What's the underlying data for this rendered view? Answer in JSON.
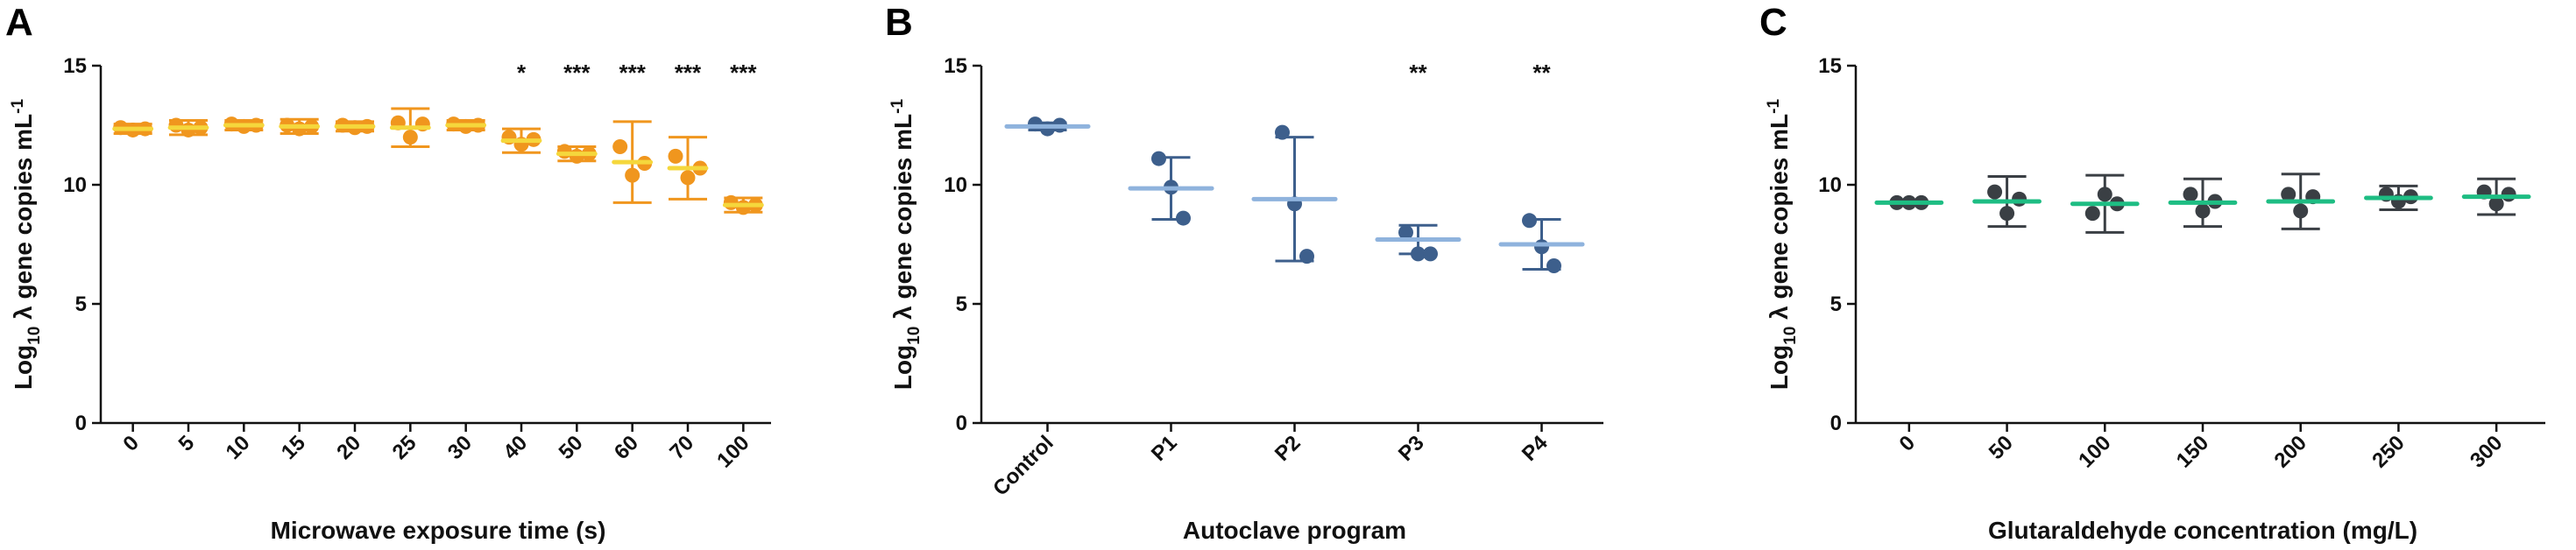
{
  "chart_data": [
    {
      "panel": "A",
      "type": "scatter",
      "xlabel": "Microwave exposure time (s)",
      "ylabel_parts": [
        "Log",
        "10",
        " λ gene copies mL",
        "-1"
      ],
      "ylim": [
        0,
        15
      ],
      "yticks": [
        "0",
        "5",
        "10",
        "15"
      ],
      "categories": [
        "0",
        "5",
        "10",
        "15",
        "20",
        "25",
        "30",
        "40",
        "50",
        "60",
        "70",
        "100"
      ],
      "means": [
        12.35,
        12.4,
        12.5,
        12.45,
        12.45,
        12.4,
        12.5,
        11.85,
        11.3,
        10.95,
        10.7,
        9.15
      ],
      "sd": [
        0.2,
        0.3,
        0.2,
        0.3,
        0.2,
        0.8,
        0.2,
        0.5,
        0.3,
        1.7,
        1.3,
        0.3
      ],
      "points": [
        [
          12.4,
          12.3,
          12.35
        ],
        [
          12.5,
          12.3,
          12.4
        ],
        [
          12.55,
          12.45,
          12.5
        ],
        [
          12.5,
          12.35,
          12.45
        ],
        [
          12.5,
          12.4,
          12.45
        ],
        [
          12.6,
          12.0,
          12.55
        ],
        [
          12.55,
          12.45,
          12.5
        ],
        [
          12.0,
          11.7,
          11.9
        ],
        [
          11.4,
          11.2,
          11.3
        ],
        [
          11.6,
          10.4,
          10.9
        ],
        [
          11.2,
          10.3,
          10.7
        ],
        [
          9.25,
          9.05,
          9.15
        ]
      ],
      "significance": [
        "",
        "",
        "",
        "",
        "",
        "",
        "",
        "*",
        "***",
        "***",
        "***",
        "***"
      ],
      "point_color": "#f0961e",
      "mean_color": "#f5d73c"
    },
    {
      "panel": "B",
      "type": "scatter",
      "xlabel": "Autoclave program",
      "ylabel_parts": [
        "Log",
        "10",
        " λ gene copies mL",
        "-1"
      ],
      "ylim": [
        0,
        15
      ],
      "yticks": [
        "0",
        "5",
        "10",
        "15"
      ],
      "categories": [
        "Control",
        "P1",
        "P2",
        "P3",
        "P4"
      ],
      "means": [
        12.45,
        9.85,
        9.4,
        7.7,
        7.5
      ],
      "sd": [
        0.15,
        1.3,
        2.6,
        0.6,
        1.05
      ],
      "points": [
        [
          12.55,
          12.35,
          12.5
        ],
        [
          11.1,
          9.9,
          8.6
        ],
        [
          12.2,
          9.2,
          7.0
        ],
        [
          8.0,
          7.1,
          7.1
        ],
        [
          8.5,
          7.4,
          6.6
        ]
      ],
      "significance": [
        "",
        "",
        "",
        "**",
        "**"
      ],
      "point_color": "#3d5f8c",
      "mean_color": "#8fb3dd"
    },
    {
      "panel": "C",
      "type": "scatter",
      "xlabel": "Glutaraldehyde concentration (mg/L)",
      "ylabel_parts": [
        "Log",
        "10",
        " λ gene copies mL",
        "-1"
      ],
      "ylim": [
        0,
        15
      ],
      "yticks": [
        "0",
        "5",
        "10",
        "15"
      ],
      "categories": [
        "0",
        "50",
        "100",
        "150",
        "200",
        "250",
        "300"
      ],
      "means": [
        9.25,
        9.3,
        9.2,
        9.25,
        9.3,
        9.45,
        9.5
      ],
      "sd": [
        0.05,
        1.05,
        1.2,
        1.0,
        1.15,
        0.5,
        0.75
      ],
      "points": [
        [
          9.25,
          9.25,
          9.25
        ],
        [
          9.7,
          8.8,
          9.4
        ],
        [
          8.8,
          9.6,
          9.2
        ],
        [
          9.6,
          8.9,
          9.3
        ],
        [
          9.6,
          8.9,
          9.5
        ],
        [
          9.6,
          9.3,
          9.5
        ],
        [
          9.7,
          9.2,
          9.6
        ]
      ],
      "significance": [
        "",
        "",
        "",
        "",
        "",
        "",
        ""
      ],
      "point_color": "#3a3f44",
      "mean_color": "#1ebd83"
    }
  ]
}
